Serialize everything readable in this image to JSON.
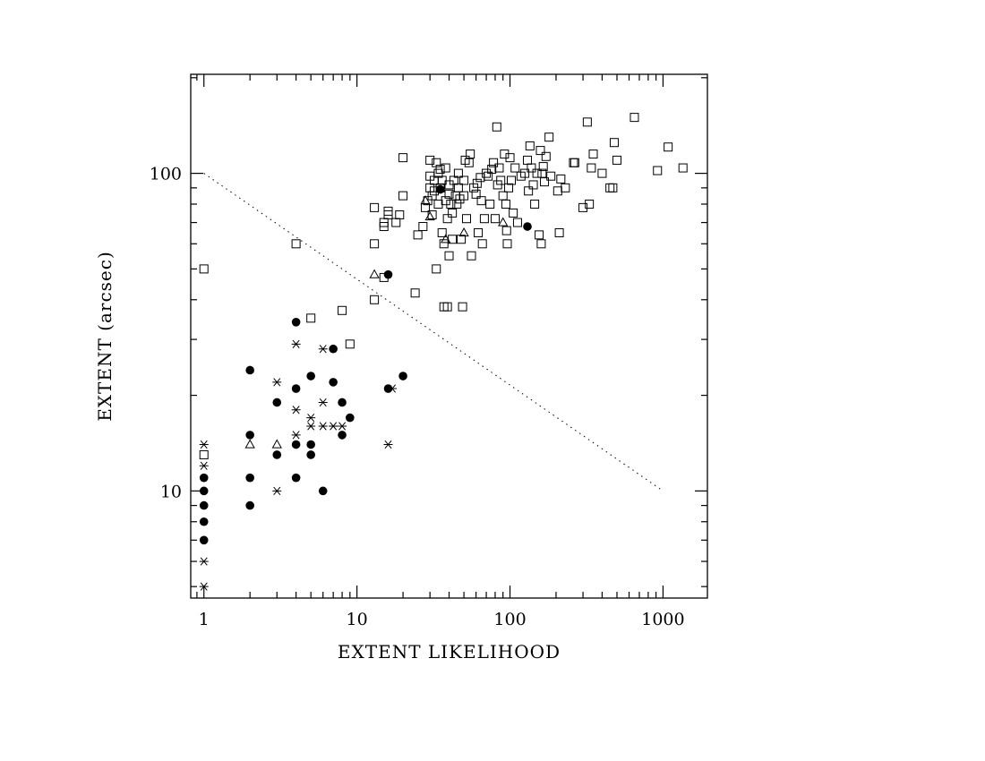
{
  "chart_data": {
    "type": "scatter",
    "xlabel": "EXTENT LIKELIHOOD",
    "ylabel": "EXTENT (arcsec)",
    "x_scale": "log",
    "y_scale": "log",
    "xlim": [
      0.82,
      1950
    ],
    "ylim": [
      4.6,
      205
    ],
    "x_ticks": [
      1,
      10,
      100,
      1000
    ],
    "x_tick_labels": [
      "1",
      "10",
      "100",
      "1000"
    ],
    "y_ticks": [
      10,
      100
    ],
    "y_tick_labels": [
      "10",
      "100"
    ],
    "grid": false,
    "legend": "none",
    "series": [
      {
        "marker": "open-square",
        "points": [
          [
            1,
            50
          ],
          [
            1,
            13
          ],
          [
            4,
            60
          ],
          [
            5,
            35
          ],
          [
            8,
            37
          ],
          [
            9,
            29
          ],
          [
            13,
            40
          ],
          [
            13,
            60
          ],
          [
            13,
            78
          ],
          [
            15,
            47
          ],
          [
            15,
            70
          ],
          [
            15,
            68
          ],
          [
            16,
            74
          ],
          [
            16,
            76
          ],
          [
            18,
            70
          ],
          [
            19,
            74
          ],
          [
            20,
            85
          ],
          [
            20,
            112
          ],
          [
            24,
            42
          ],
          [
            25,
            64
          ],
          [
            27,
            68
          ],
          [
            28,
            78
          ],
          [
            29,
            82
          ],
          [
            30,
            110
          ],
          [
            30,
            98
          ],
          [
            30,
            90
          ],
          [
            31,
            85
          ],
          [
            31,
            74
          ],
          [
            32,
            95
          ],
          [
            32,
            88
          ],
          [
            33,
            50
          ],
          [
            33,
            108
          ],
          [
            34,
            80
          ],
          [
            34,
            100
          ],
          [
            35,
            103
          ],
          [
            35,
            90
          ],
          [
            36,
            95
          ],
          [
            36,
            65
          ],
          [
            37,
            38
          ],
          [
            37,
            60
          ],
          [
            38,
            82
          ],
          [
            38,
            104
          ],
          [
            39,
            38
          ],
          [
            39,
            72
          ],
          [
            40,
            86
          ],
          [
            40,
            55
          ],
          [
            40,
            92
          ],
          [
            41,
            80
          ],
          [
            42,
            75
          ],
          [
            42,
            62
          ],
          [
            43,
            95
          ],
          [
            44,
            85
          ],
          [
            45,
            80
          ],
          [
            46,
            100
          ],
          [
            46,
            90
          ],
          [
            47,
            83
          ],
          [
            48,
            62
          ],
          [
            49,
            38
          ],
          [
            50,
            95
          ],
          [
            50,
            85
          ],
          [
            51,
            110
          ],
          [
            52,
            72
          ],
          [
            54,
            108
          ],
          [
            55,
            115
          ],
          [
            56,
            55
          ],
          [
            58,
            90
          ],
          [
            60,
            86
          ],
          [
            61,
            93
          ],
          [
            62,
            65
          ],
          [
            64,
            97
          ],
          [
            65,
            82
          ],
          [
            66,
            60
          ],
          [
            68,
            72
          ],
          [
            70,
            100
          ],
          [
            72,
            98
          ],
          [
            74,
            80
          ],
          [
            76,
            103
          ],
          [
            78,
            108
          ],
          [
            80,
            72
          ],
          [
            82,
            140
          ],
          [
            83,
            92
          ],
          [
            85,
            104
          ],
          [
            87,
            95
          ],
          [
            90,
            85
          ],
          [
            92,
            115
          ],
          [
            94,
            80
          ],
          [
            95,
            66
          ],
          [
            96,
            60
          ],
          [
            98,
            90
          ],
          [
            100,
            112
          ],
          [
            102,
            95
          ],
          [
            105,
            75
          ],
          [
            108,
            104
          ],
          [
            112,
            70
          ],
          [
            118,
            98
          ],
          [
            125,
            100
          ],
          [
            130,
            110
          ],
          [
            132,
            88
          ],
          [
            135,
            122
          ],
          [
            138,
            104
          ],
          [
            142,
            92
          ],
          [
            145,
            80
          ],
          [
            150,
            100
          ],
          [
            155,
            64
          ],
          [
            158,
            118
          ],
          [
            160,
            60
          ],
          [
            162,
            100
          ],
          [
            165,
            105
          ],
          [
            168,
            94
          ],
          [
            172,
            113
          ],
          [
            180,
            130
          ],
          [
            185,
            98
          ],
          [
            205,
            88
          ],
          [
            210,
            65
          ],
          [
            215,
            96
          ],
          [
            230,
            90
          ],
          [
            260,
            108
          ],
          [
            265,
            108
          ],
          [
            300,
            78
          ],
          [
            320,
            145
          ],
          [
            330,
            80
          ],
          [
            340,
            104
          ],
          [
            350,
            115
          ],
          [
            400,
            100
          ],
          [
            450,
            90
          ],
          [
            470,
            90
          ],
          [
            480,
            125
          ],
          [
            500,
            110
          ],
          [
            650,
            150
          ],
          [
            920,
            102
          ],
          [
            1080,
            121
          ],
          [
            1350,
            104
          ]
        ]
      },
      {
        "marker": "filled-circle",
        "points": [
          [
            1,
            11
          ],
          [
            1,
            10
          ],
          [
            1,
            9
          ],
          [
            1,
            8
          ],
          [
            1,
            7
          ],
          [
            2,
            24
          ],
          [
            2,
            15
          ],
          [
            2,
            11
          ],
          [
            2,
            9
          ],
          [
            3,
            19
          ],
          [
            3,
            13
          ],
          [
            4,
            34
          ],
          [
            4,
            21
          ],
          [
            4,
            14
          ],
          [
            4,
            11
          ],
          [
            5,
            23
          ],
          [
            5,
            14
          ],
          [
            5,
            13
          ],
          [
            6,
            10
          ],
          [
            7,
            28
          ],
          [
            7,
            22
          ],
          [
            8,
            19
          ],
          [
            8,
            15
          ],
          [
            9,
            17
          ],
          [
            16,
            21
          ],
          [
            16,
            48
          ],
          [
            20,
            23
          ],
          [
            35,
            89
          ],
          [
            130,
            68
          ]
        ]
      },
      {
        "marker": "asterisk",
        "points": [
          [
            1,
            14
          ],
          [
            1,
            12
          ],
          [
            1,
            6
          ],
          [
            1,
            5
          ],
          [
            3,
            22
          ],
          [
            3,
            10
          ],
          [
            4,
            29
          ],
          [
            4,
            18
          ],
          [
            4,
            15
          ],
          [
            5,
            17
          ],
          [
            5,
            16
          ],
          [
            6,
            28
          ],
          [
            6,
            19
          ],
          [
            6,
            16
          ],
          [
            7,
            16
          ],
          [
            8,
            16
          ],
          [
            16,
            14
          ],
          [
            17,
            21
          ]
        ]
      },
      {
        "marker": "open-triangle",
        "points": [
          [
            2,
            14
          ],
          [
            3,
            14
          ],
          [
            13,
            48
          ],
          [
            28,
            82
          ],
          [
            30,
            73
          ],
          [
            38,
            62
          ],
          [
            50,
            65
          ],
          [
            90,
            70
          ]
        ]
      }
    ],
    "reference_line": {
      "style": "dotted",
      "points": [
        [
          1,
          100
        ],
        [
          1000,
          10
        ]
      ]
    }
  }
}
